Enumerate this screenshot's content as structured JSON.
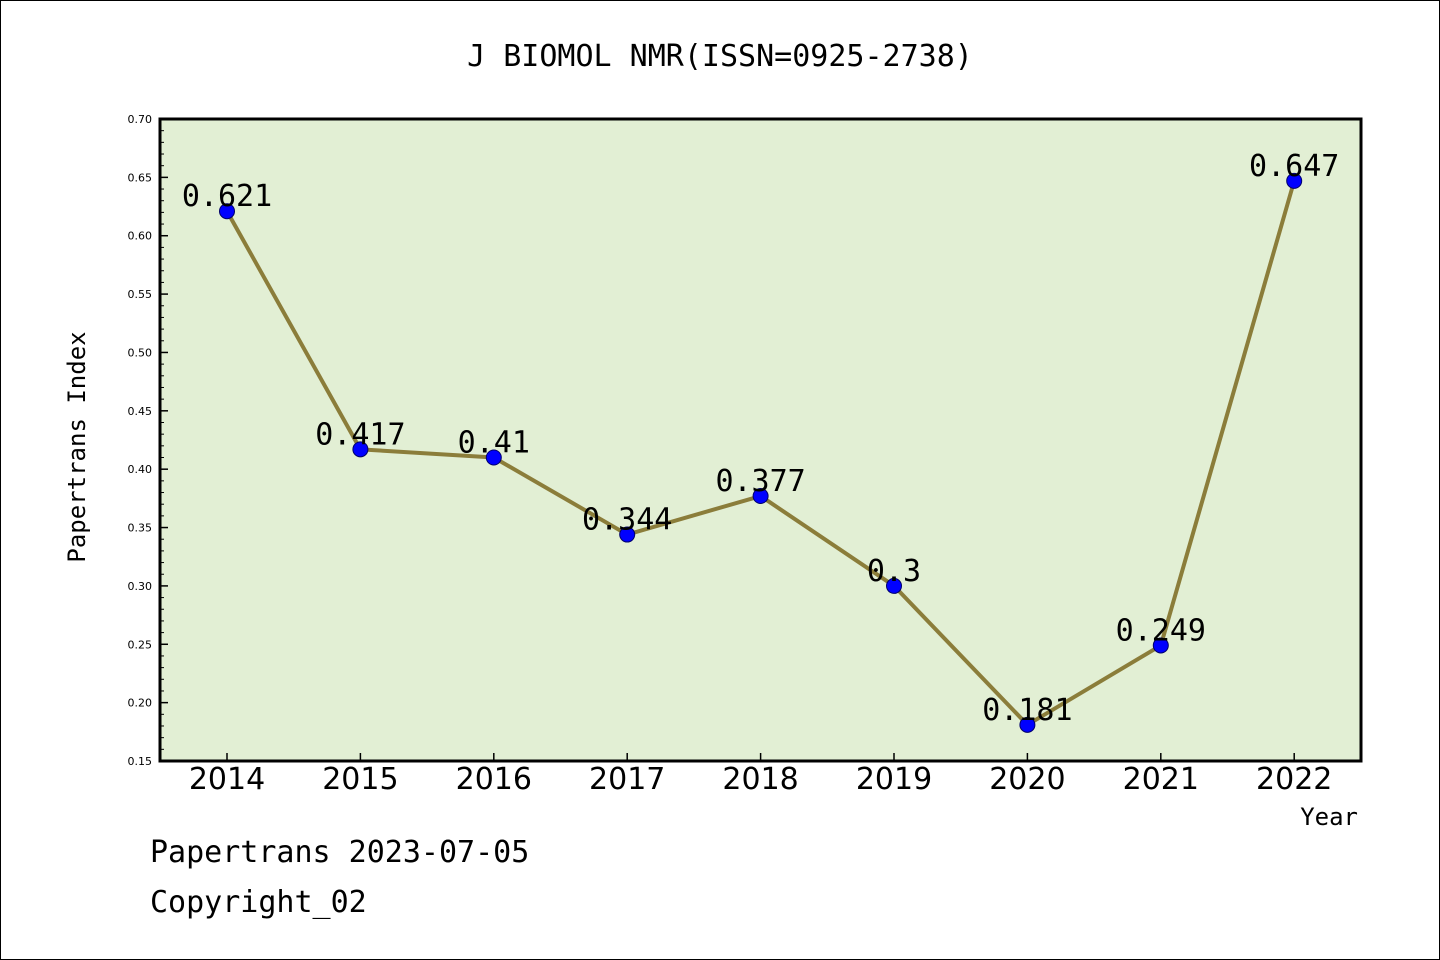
{
  "chart_data": {
    "type": "line",
    "title": "J BIOMOL NMR(ISSN=0925-2738)",
    "xlabel": "Year",
    "ylabel": "Papertrans Index",
    "categories": [
      "2014",
      "2015",
      "2016",
      "2017",
      "2018",
      "2019",
      "2020",
      "2021",
      "2022"
    ],
    "series": [
      {
        "values": [
          0.621,
          0.417,
          0.41,
          0.344,
          0.377,
          0.3,
          0.181,
          0.249,
          0.647
        ],
        "labels": [
          "0.621",
          "0.417",
          "0.41",
          "0.344",
          "0.377",
          "0.3",
          "0.181",
          "0.249",
          "0.647"
        ],
        "line_color": "#8b7d3a",
        "marker_color": "#0000ff"
      }
    ],
    "ylim": [
      0.15,
      0.7
    ],
    "yticks": [
      "0.15",
      "0.20",
      "0.25",
      "0.30",
      "0.35",
      "0.40",
      "0.45",
      "0.50",
      "0.55",
      "0.60",
      "0.65",
      "0.70"
    ],
    "plot_background": "#e2efd4",
    "grid": false,
    "legend": "none"
  },
  "footer": {
    "line1": "Papertrans 2023-07-05",
    "line2": "Copyright_02"
  }
}
